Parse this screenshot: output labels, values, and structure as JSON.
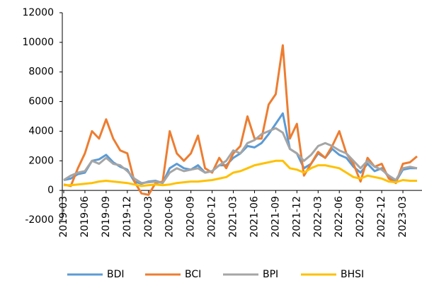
{
  "chart_data": {
    "type": "line",
    "x": [
      "2019-03",
      "2019-04",
      "2019-05",
      "2019-06",
      "2019-07",
      "2019-08",
      "2019-09",
      "2019-10",
      "2019-11",
      "2019-12",
      "2020-01",
      "2020-02",
      "2020-03",
      "2020-04",
      "2020-05",
      "2020-06",
      "2020-07",
      "2020-08",
      "2020-09",
      "2020-10",
      "2020-11",
      "2020-12",
      "2021-01",
      "2021-02",
      "2021-03",
      "2021-04",
      "2021-05",
      "2021-06",
      "2021-07",
      "2021-08",
      "2021-09",
      "2021-10",
      "2021-11",
      "2021-12",
      "2022-01",
      "2022-02",
      "2022-03",
      "2022-04",
      "2022-05",
      "2022-06",
      "2022-07",
      "2022-08",
      "2022-09",
      "2022-10",
      "2022-11",
      "2022-12",
      "2023-01",
      "2023-02",
      "2023-03",
      "2023-04",
      "2023-05"
    ],
    "series": [
      {
        "name": "BDI",
        "color": "#5b9bd5",
        "values": [
          700,
          800,
          1100,
          1200,
          2000,
          2100,
          2400,
          1900,
          1600,
          1400,
          600,
          450,
          600,
          650,
          500,
          1500,
          1800,
          1500,
          1400,
          1700,
          1200,
          1300,
          1700,
          1700,
          2200,
          2500,
          3000,
          2900,
          3200,
          3800,
          4500,
          5200,
          2800,
          2500,
          1500,
          1800,
          2500,
          2200,
          2800,
          2400,
          2200,
          1600,
          1200,
          1800,
          1300,
          1500,
          900,
          600,
          1400,
          1500,
          1500
        ]
      },
      {
        "name": "BCI",
        "color": "#ed7d31",
        "values": [
          400,
          300,
          1500,
          2500,
          4000,
          3500,
          4800,
          3500,
          2700,
          2500,
          600,
          -200,
          -300,
          500,
          600,
          4000,
          2500,
          2000,
          2500,
          3700,
          1500,
          1200,
          2200,
          1500,
          2500,
          3000,
          5000,
          3500,
          3500,
          5800,
          6500,
          9800,
          3500,
          4500,
          1000,
          1800,
          2600,
          2200,
          3000,
          4000,
          2500,
          1800,
          600,
          2200,
          1600,
          1800,
          800,
          500,
          1800,
          1900,
          2300
        ]
      },
      {
        "name": "BPI",
        "color": "#a5a5a5",
        "values": [
          700,
          1000,
          1200,
          1300,
          2000,
          1800,
          2200,
          1800,
          1700,
          1300,
          800,
          500,
          550,
          600,
          500,
          1200,
          1500,
          1300,
          1400,
          1500,
          1200,
          1300,
          1700,
          2000,
          2700,
          2500,
          3200,
          3400,
          3800,
          4000,
          4200,
          3900,
          2800,
          2500,
          2000,
          2400,
          3000,
          3200,
          3000,
          2700,
          2500,
          2000,
          1500,
          2000,
          1600,
          1400,
          1000,
          700,
          1500,
          1600,
          1500
        ]
      },
      {
        "name": "BHSI",
        "color": "#ffc000",
        "values": [
          350,
          350,
          400,
          450,
          500,
          600,
          650,
          600,
          550,
          500,
          400,
          300,
          350,
          400,
          350,
          400,
          500,
          550,
          600,
          600,
          650,
          700,
          800,
          900,
          1200,
          1300,
          1500,
          1700,
          1800,
          1900,
          2000,
          2000,
          1500,
          1400,
          1200,
          1500,
          1700,
          1700,
          1600,
          1500,
          1200,
          900,
          800,
          1000,
          900,
          800,
          600,
          550,
          700,
          650,
          650
        ]
      }
    ],
    "xticks": [
      "2019-03",
      "2019-06",
      "2019-09",
      "2019-12",
      "2020-03",
      "2020-06",
      "2020-09",
      "2020-12",
      "2021-03",
      "2021-06",
      "2021-09",
      "2021-12",
      "2022-03",
      "2022-06",
      "2022-09",
      "2022-12",
      "2023-03"
    ],
    "ylim": [
      -2000,
      12000
    ],
    "yticks": [
      -2000,
      0,
      2000,
      4000,
      6000,
      8000,
      10000,
      12000
    ],
    "grid": false
  }
}
